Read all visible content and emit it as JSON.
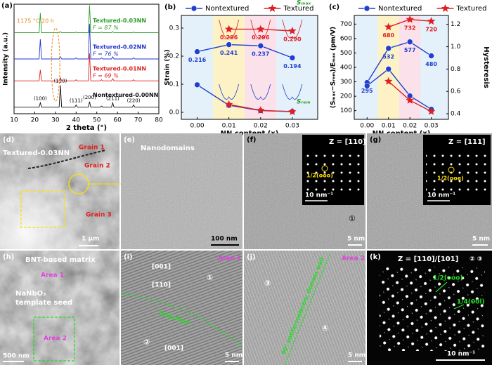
{
  "chart_data": [
    {
      "type": "line",
      "panel": "(a)",
      "xlabel": "2 theta (°)",
      "ylabel": "Intensity (a.u.)",
      "annotation": "1175 °C 20 h",
      "x": [
        10,
        22.1,
        22.7,
        23.3,
        31.8,
        32.4,
        33.0,
        39.4,
        40.0,
        40.6,
        45.9,
        46.5,
        47.1,
        51.7,
        52.3,
        52.9,
        57.1,
        57.7,
        58.3,
        67.2,
        67.8,
        68.4,
        80
      ],
      "xlim": [
        10,
        80
      ],
      "xticks": [
        10,
        20,
        30,
        40,
        50,
        60,
        70,
        80
      ],
      "ylim": [
        0,
        100
      ],
      "series": [
        {
          "name": "Textured-0.03NN",
          "label_f": "F = 87 %",
          "color": "#2a9d2a",
          "values": [
            74,
            74,
            92,
            74,
            74,
            75,
            74,
            74,
            74.5,
            74,
            74,
            99,
            74,
            74,
            74.5,
            74,
            74,
            75,
            74,
            74,
            74.5,
            74,
            74
          ]
        },
        {
          "name": "Textured-0.02NN",
          "label_f": "F = 76 %",
          "color": "#2233cc",
          "values": [
            50,
            50,
            68,
            50,
            50,
            52,
            50,
            50,
            51,
            50,
            50,
            82,
            50,
            50,
            51,
            50,
            50,
            52,
            50,
            50,
            51,
            50,
            50
          ]
        },
        {
          "name": "Textured-0.01NN",
          "label_f": "F = 69 %",
          "color": "#dd2222",
          "values": [
            30,
            30,
            40,
            30,
            30,
            33,
            30,
            30,
            31,
            30,
            30,
            55,
            30,
            30,
            31,
            30,
            30,
            32,
            30,
            30,
            31,
            30,
            30
          ]
        },
        {
          "name": "Nontextured-0.00NN",
          "color": "#111111",
          "values": [
            6,
            6,
            10,
            6,
            6,
            26,
            6,
            6,
            8,
            6,
            6,
            11,
            6,
            6,
            7,
            6,
            6,
            10,
            6,
            6,
            8,
            6,
            6
          ]
        }
      ],
      "peak_labels": [
        {
          "label": "(100)",
          "x": 22.7
        },
        {
          "label": "(110)",
          "x": 32.4
        },
        {
          "label": "(111)",
          "x": 40.0
        },
        {
          "label": "(200)",
          "x": 46.5
        },
        {
          "label": "(211)",
          "x": 57.7
        },
        {
          "label": "(220)",
          "x": 67.8
        }
      ]
    },
    {
      "type": "line",
      "panel": "(b)",
      "xlabel": "NN content (x)",
      "ylabel": "Strain (%)",
      "x": [
        0,
        0.01,
        0.02,
        0.03
      ],
      "xlim": [
        -0.005,
        0.038
      ],
      "xticks": [
        {
          "value": 0,
          "label": "0.00"
        },
        0.01,
        0.02,
        0.03
      ],
      "ylim": [
        -0.025,
        0.345
      ],
      "yticks": [
        {
          "value": 0,
          "label": "0.0"
        },
        0.1,
        0.2,
        0.3
      ],
      "band_colors": [
        "#e4f1fb",
        "#fdf2c6",
        "#fbe1ea",
        "#e4f1fb"
      ],
      "legend": "top",
      "series": [
        {
          "name": "Nontextured",
          "color": "#1f3fcf",
          "marker": "circle",
          "show_values": true,
          "values": [
            0.216,
            0.241,
            0.237,
            0.194
          ]
        },
        {
          "name": "Textured",
          "color": "#e02020",
          "marker": "star",
          "show_values": true,
          "values": [
            null,
            0.296,
            0.296,
            0.29
          ],
          "value_labels": [
            null,
            "0.296",
            "0.296",
            "0.290"
          ]
        },
        {
          "color": "#1f3fcf",
          "marker": "circle",
          "values": [
            0.098,
            0.025,
            0.006,
            0.003
          ]
        },
        {
          "color": "#e02020",
          "marker": "star",
          "values": [
            null,
            0.028,
            0.007,
            0.002
          ]
        }
      ],
      "annotations": [
        "Sₘₐₓ",
        "Sᵣₑₘ"
      ],
      "annotation_color": "#2a9d2a"
    },
    {
      "type": "line",
      "panel": "(c)",
      "xlabel": "NN content (x)",
      "ylabel": "(Sₘₐₓ−Sᵣₑₘ)/Eₘₐₓ (pm/V)",
      "y2label": "Hysteresis",
      "x": [
        0,
        0.01,
        0.02,
        0.03
      ],
      "xlim": [
        -0.006,
        0.038
      ],
      "xticks": [
        {
          "value": 0,
          "label": "0.00"
        },
        0.01,
        0.02,
        0.03
      ],
      "ylim": [
        40,
        760
      ],
      "yticks": [
        100,
        200,
        300,
        400,
        500,
        600,
        700
      ],
      "y2lim": [
        0.35,
        1.28
      ],
      "y2ticks": [
        0.4,
        0.6,
        0.8,
        {
          "value": 1,
          "label": "1.0"
        },
        1.2
      ],
      "band_colors": [
        "#e4f1fb",
        "#fdf2c6",
        "#fbe1ea",
        "#e4f1fb"
      ],
      "legend": "top",
      "series": [
        {
          "name": "Nontextured",
          "color": "#1f3fcf",
          "marker": "circle",
          "show_values": true,
          "values": [
            295,
            532,
            577,
            480
          ]
        },
        {
          "name": "Textured",
          "color": "#e02020",
          "marker": "star",
          "show_values": true,
          "values": [
            null,
            680,
            732,
            720
          ]
        },
        {
          "color": "#1f3fcf",
          "marker": "circle",
          "axis": "y2",
          "values": [
            0.65,
            0.8,
            0.56,
            0.44
          ]
        },
        {
          "color": "#e02020",
          "marker": "star",
          "axis": "y2",
          "values": [
            null,
            0.69,
            0.52,
            0.42
          ]
        }
      ]
    }
  ],
  "images": [
    {
      "label": "(d)",
      "texts": [
        "Textured-0.03NN",
        "Grain 1",
        "Grain 2",
        "Grain 3",
        "1 μm"
      ]
    },
    {
      "label": "(e)",
      "texts": [
        "Nanodomains",
        "100 nm"
      ]
    },
    {
      "label": "(f)",
      "texts": [
        "Z = [110]",
        "1/2(ooo)",
        "10 nm⁻¹",
        "①",
        "5 nm"
      ]
    },
    {
      "label": "(g)",
      "texts": [
        "Z = [111]",
        "1/2(ooe)",
        "10 nm⁻¹",
        "5 nm"
      ]
    },
    {
      "label": "(h)",
      "texts": [
        "BNT-based matrix",
        "Area 1",
        "NaNbO₃",
        "template seed",
        "Area 2",
        "500 nm"
      ]
    },
    {
      "label": "(i)",
      "texts": [
        "Area 1",
        "[001]",
        "[1̄10]",
        "①",
        "Interface",
        "②",
        "[001]",
        "5 nm"
      ]
    },
    {
      "label": "(j)",
      "texts": [
        "Area 2",
        "③",
        "90° antiferroelectric domain wall",
        "④",
        "5 nm"
      ]
    },
    {
      "label": "(k)",
      "texts": [
        "Z = [110]/[101]",
        "② ③",
        "1/2(ooo)",
        "1/4(00l)",
        "10 nm⁻¹"
      ]
    }
  ]
}
